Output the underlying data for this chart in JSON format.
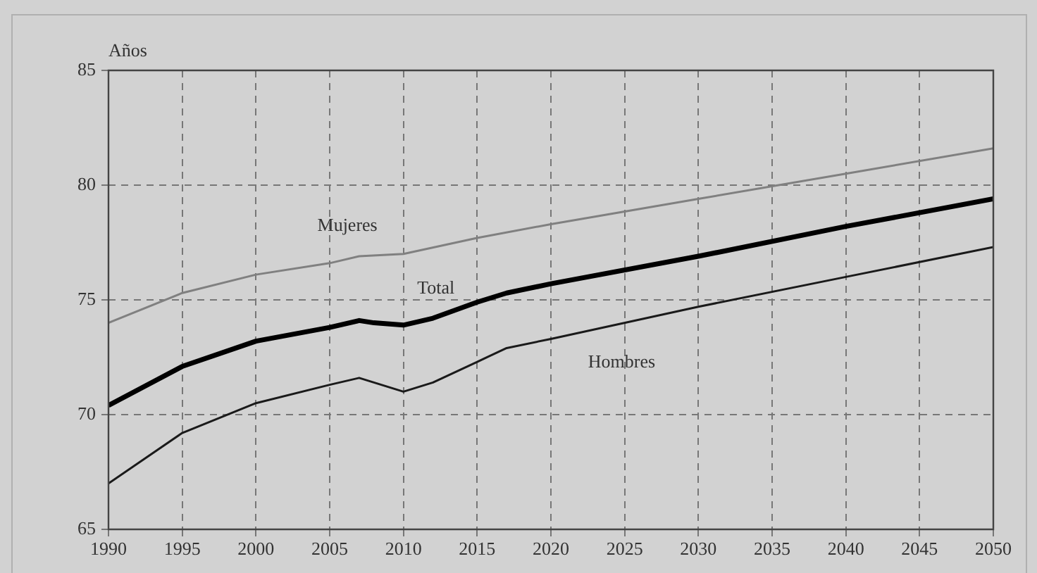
{
  "chart_data": {
    "type": "line",
    "ylabel": "Años",
    "xlim": [
      1990,
      2050
    ],
    "xticks": [
      1990,
      1995,
      2000,
      2005,
      2010,
      2015,
      2020,
      2025,
      2030,
      2035,
      2040,
      2045,
      2050
    ],
    "ylim": [
      65,
      85
    ],
    "yticks": [
      65,
      70,
      75,
      80,
      85
    ],
    "grid": true,
    "line_style": "solid",
    "series": [
      {
        "name": "Mujeres",
        "color": "#808080",
        "x": [
          1990,
          1995,
          2000,
          2005,
          2007,
          2010,
          2015,
          2020,
          2030,
          2040,
          2050
        ],
        "values": [
          74.0,
          75.3,
          76.1,
          76.6,
          76.9,
          77.0,
          77.7,
          78.3,
          79.4,
          80.5,
          81.6
        ]
      },
      {
        "name": "Total",
        "color": "#000000",
        "x": [
          1990,
          1995,
          2000,
          2005,
          2007,
          2008,
          2010,
          2012,
          2015,
          2017,
          2020,
          2030,
          2040,
          2050
        ],
        "values": [
          70.4,
          72.1,
          73.2,
          73.8,
          74.1,
          74.0,
          73.9,
          74.2,
          74.9,
          75.3,
          75.7,
          76.9,
          78.2,
          79.4
        ]
      },
      {
        "name": "Hombres",
        "color": "#1a1a1a",
        "x": [
          1990,
          1995,
          2000,
          2005,
          2007,
          2010,
          2012,
          2015,
          2017,
          2020,
          2030,
          2040,
          2050
        ],
        "values": [
          67.0,
          69.2,
          70.5,
          71.3,
          71.6,
          71.0,
          71.4,
          72.3,
          72.9,
          73.3,
          74.7,
          76.0,
          77.3
        ]
      }
    ]
  }
}
